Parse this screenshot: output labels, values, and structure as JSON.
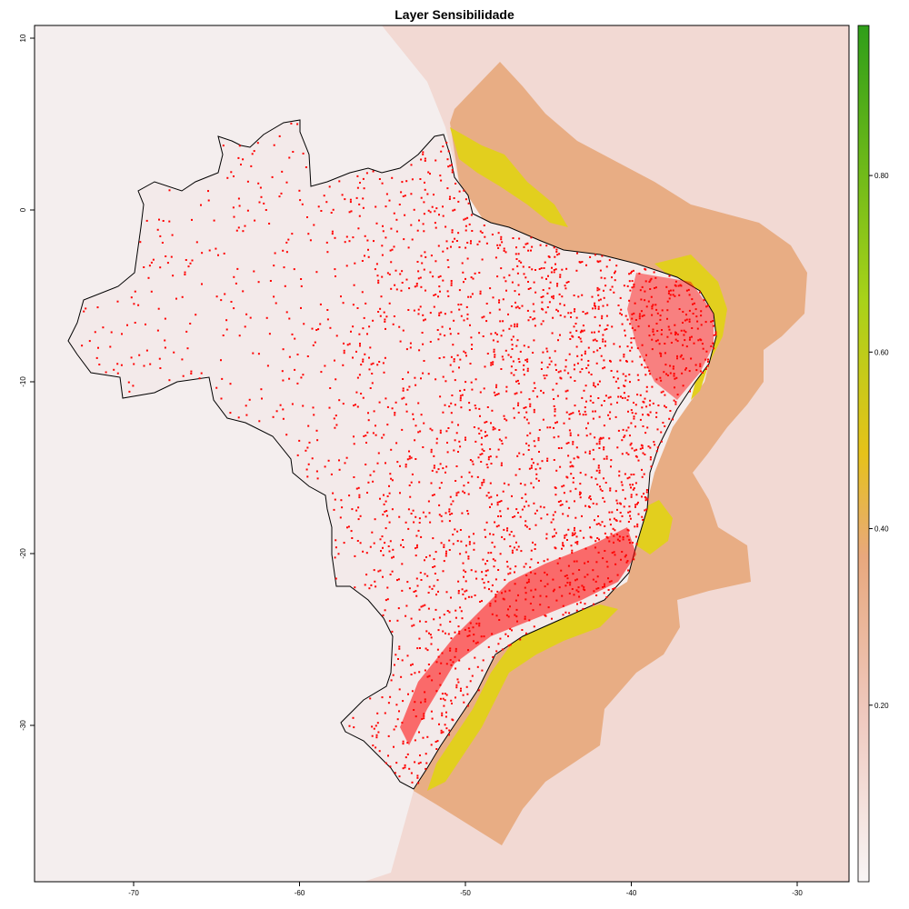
{
  "title": "Layer Sensibilidade",
  "x_ticks": [
    {
      "value": -70,
      "label": "-70"
    },
    {
      "value": -60,
      "label": "-60"
    },
    {
      "value": -50,
      "label": "-50"
    },
    {
      "value": -40,
      "label": "-40"
    },
    {
      "value": -30,
      "label": "-30"
    }
  ],
  "y_ticks": [
    {
      "value": 10,
      "label": "10"
    },
    {
      "value": 0,
      "label": "0"
    },
    {
      "value": -10,
      "label": "-10"
    },
    {
      "value": -20,
      "label": "-20"
    },
    {
      "value": -30,
      "label": "-30"
    }
  ],
  "legend": {
    "ticks": [
      {
        "value": 0.2,
        "label": "0.20"
      },
      {
        "value": 0.4,
        "label": "0.40"
      },
      {
        "value": 0.6,
        "label": "0.60"
      },
      {
        "value": 0.8,
        "label": "0.80"
      }
    ],
    "range": [
      0,
      0.97
    ],
    "colors": [
      "#f8f5f5",
      "#efc8bd",
      "#e8a87d",
      "#e6c21a",
      "#a8d21a",
      "#2f9e1a"
    ]
  },
  "colors": {
    "background_land": "#f4eeee",
    "background_ocean": "#f2d9d3",
    "shelf": "#e8ad84",
    "high_sensitivity": "#e2cf1e",
    "occurrence_points": "#ff0000",
    "boundary": "#000000"
  }
}
